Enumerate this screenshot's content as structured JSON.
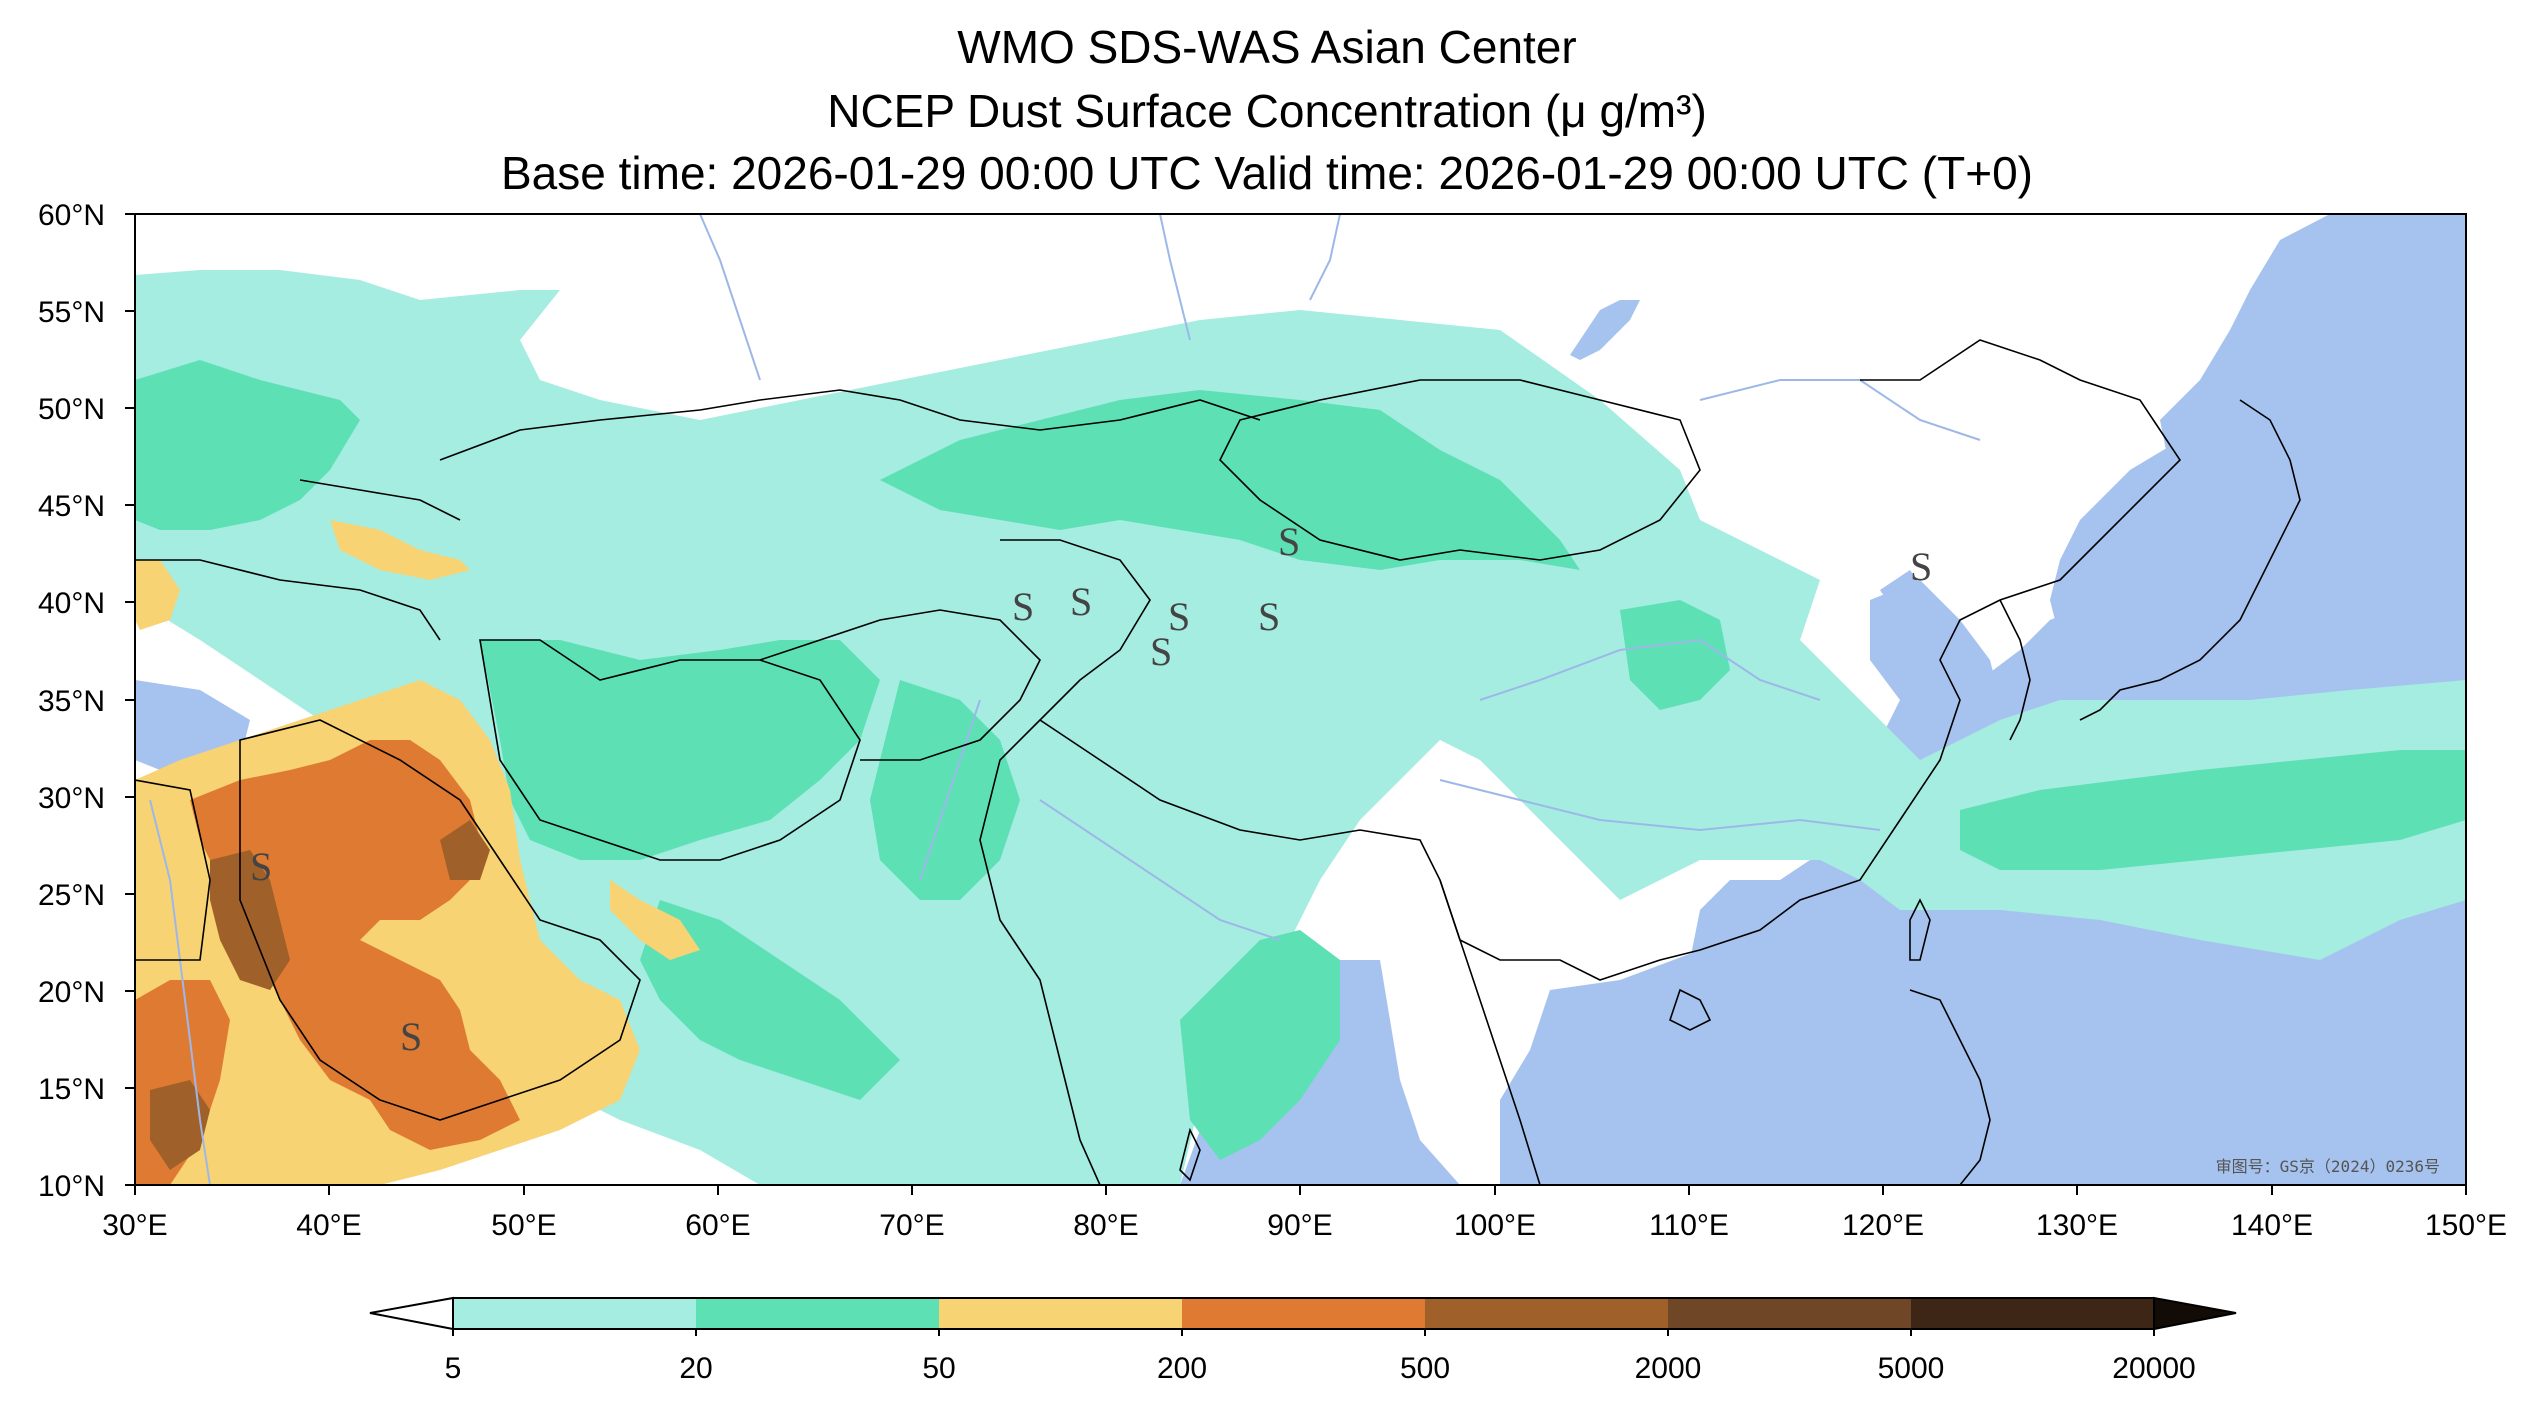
{
  "title": {
    "line1": "WMO SDS-WAS Asian Center",
    "line2": "NCEP Dust Surface Concentration (μ g/m³)",
    "line3": "Base time: 2026-01-29 00:00 UTC Valid time: 2026-01-29 00:00 UTC (T+0)"
  },
  "map": {
    "lon_range": [
      30,
      150
    ],
    "lat_range": [
      10,
      60
    ],
    "x_ticks": [
      "30°E",
      "40°E",
      "50°E",
      "60°E",
      "70°E",
      "80°E",
      "90°E",
      "100°E",
      "110°E",
      "120°E",
      "130°E",
      "140°E",
      "150°E"
    ],
    "y_ticks": [
      "60°N",
      "55°N",
      "50°N",
      "45°N",
      "40°N",
      "35°N",
      "30°N",
      "25°N",
      "20°N",
      "15°N",
      "10°N"
    ],
    "watermark": "审图号：GS京（2024）0236号",
    "storm_marker": "S"
  },
  "colorbar": {
    "levels": [
      "5",
      "20",
      "50",
      "200",
      "500",
      "2000",
      "5000",
      "20000"
    ],
    "colors": [
      "#a5ece1",
      "#5ce0b4",
      "#f8d374",
      "#df7a33",
      "#a0602a",
      "#6f4726",
      "#3d2616"
    ]
  },
  "colors": {
    "ocean": "#a6c2ef",
    "land": "#ffffff",
    "level1": "#a5ece1",
    "level2": "#5ce0b4",
    "level3": "#f8d374",
    "level4": "#df7a33",
    "level5": "#a0602a",
    "river": "#9db8e8"
  }
}
